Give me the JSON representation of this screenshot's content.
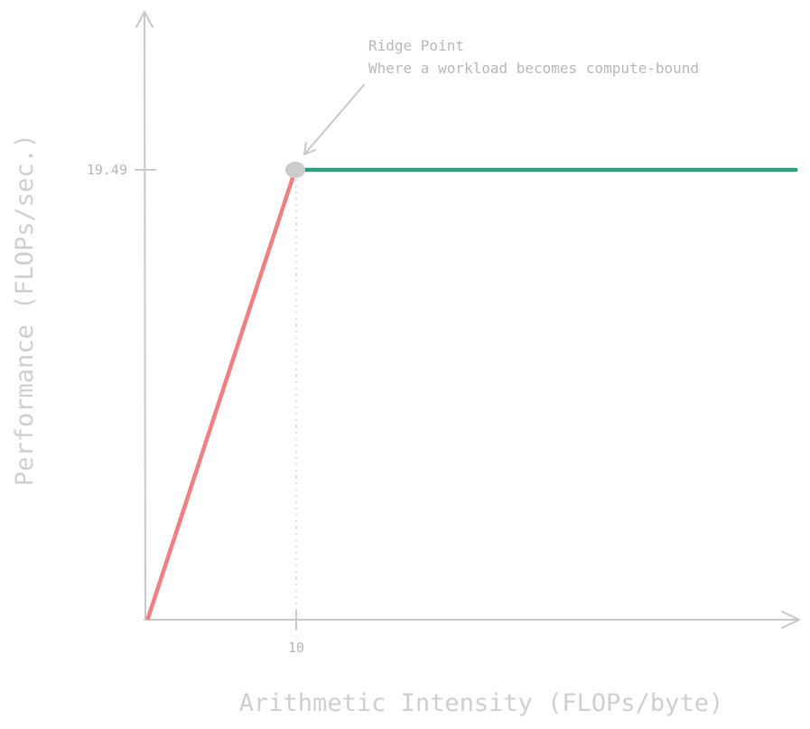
{
  "chart_data": {
    "type": "line",
    "xlabel": "Arithmetic Intensity (FLOPs/byte)",
    "ylabel": "Performance (FLOPs/sec.)",
    "x_ticks": [
      "10"
    ],
    "y_ticks": [
      "19.49"
    ],
    "xlim": [
      0,
      44
    ],
    "ylim": [
      0,
      19.49
    ],
    "grid": false,
    "series": [
      {
        "x": [
          0,
          10
        ],
        "y": [
          0,
          19.49
        ],
        "color": "#f07f7f"
      },
      {
        "x": [
          10,
          44
        ],
        "y": [
          19.49,
          19.49
        ],
        "color": "#2a9d7f"
      }
    ],
    "ridge_point": {
      "x": 10,
      "y": 19.49,
      "color": "#cccccc"
    },
    "annotation": {
      "title": "Ridge Point",
      "text": "Where a workload becomes compute-bound"
    }
  }
}
